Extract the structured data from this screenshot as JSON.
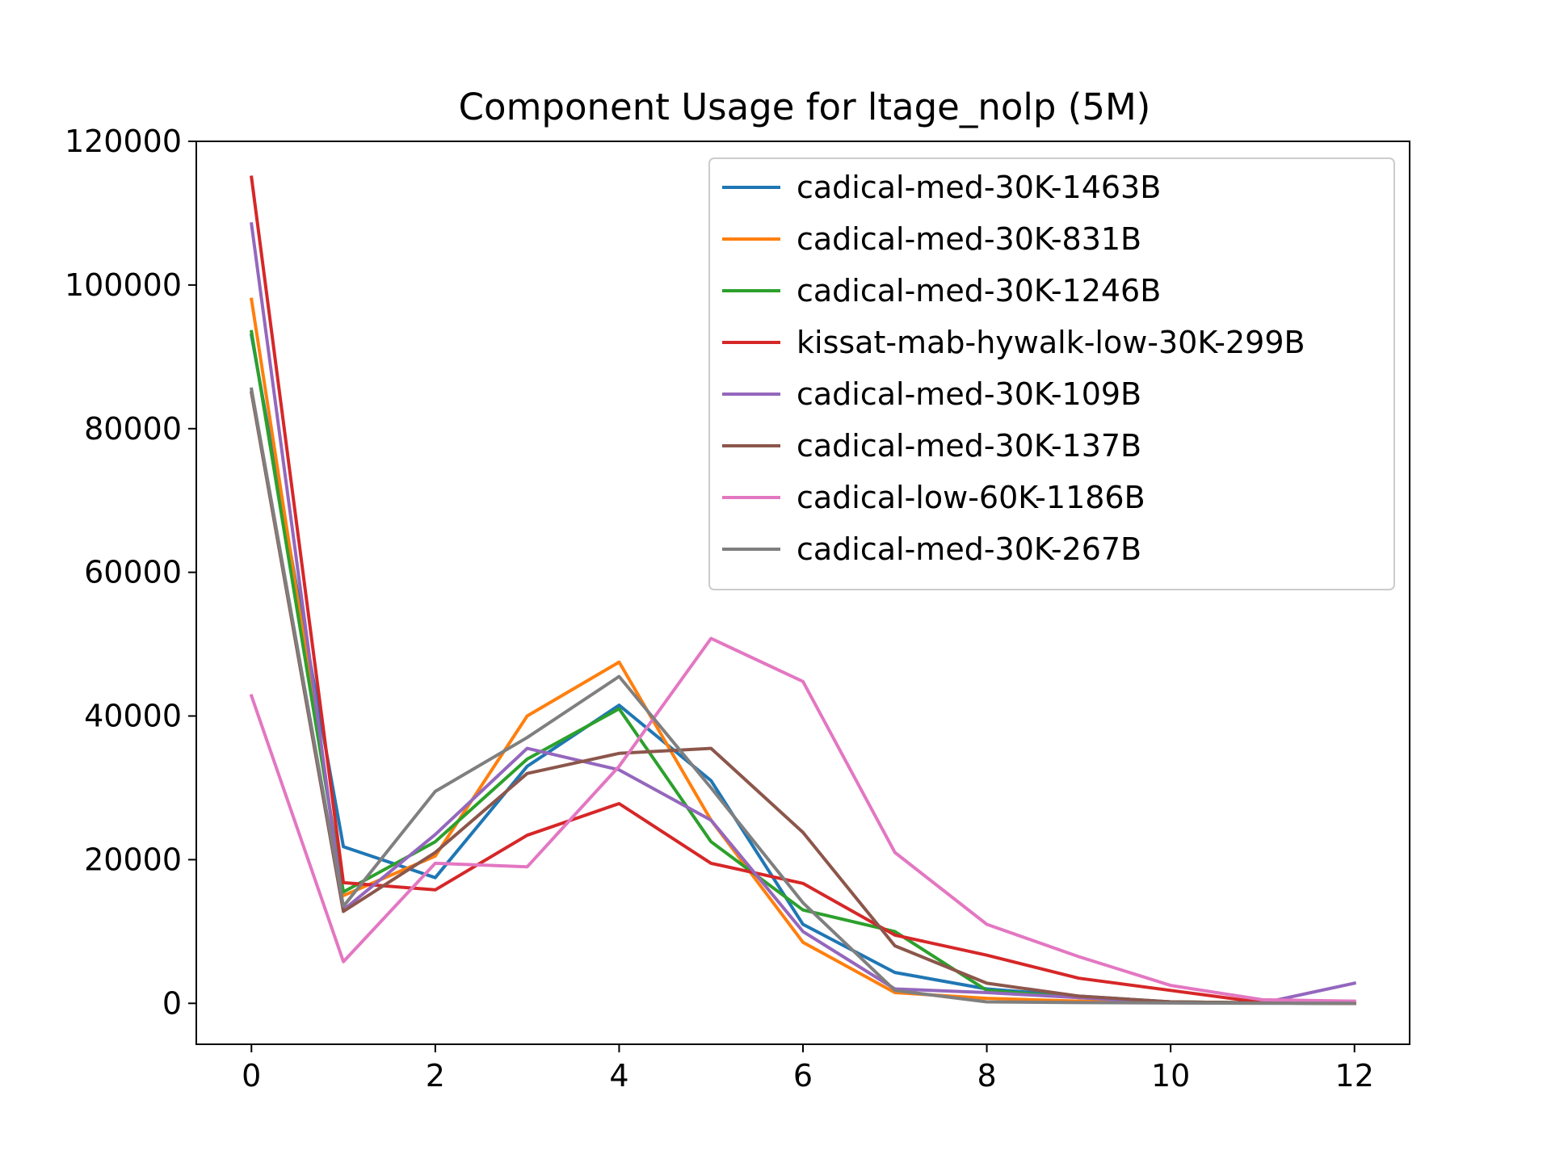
{
  "chart_data": {
    "type": "line",
    "title": "Component Usage for ltage_nolp (5M)",
    "xlabel": "",
    "ylabel": "",
    "xlim": [
      -0.6,
      12.6
    ],
    "ylim": [
      -5700,
      120000
    ],
    "xticks": [
      0,
      2,
      4,
      6,
      8,
      10,
      12
    ],
    "xtick_labels": [
      "0",
      "2",
      "4",
      "6",
      "8",
      "10",
      "12"
    ],
    "yticks": [
      0,
      20000,
      40000,
      60000,
      80000,
      100000,
      120000
    ],
    "ytick_labels": [
      "0",
      "20000",
      "40000",
      "60000",
      "80000",
      "100000",
      "120000"
    ],
    "grid": false,
    "legend_position": "top-right",
    "x": [
      0,
      1,
      2,
      3,
      4,
      5,
      6,
      7,
      8,
      9,
      10,
      11,
      12
    ],
    "series": [
      {
        "name": "cadical-med-30K-1463B",
        "color": "#1f77b4",
        "values": [
          93000,
          21800,
          17500,
          33000,
          41500,
          31000,
          11000,
          4300,
          2000,
          1000,
          200,
          50,
          0
        ]
      },
      {
        "name": "cadical-med-30K-831B",
        "color": "#ff7f0e",
        "values": [
          98000,
          15000,
          20500,
          40000,
          47500,
          25500,
          8500,
          1500,
          700,
          300,
          100,
          50,
          0
        ]
      },
      {
        "name": "cadical-med-30K-1246B",
        "color": "#2ca02c",
        "values": [
          93500,
          15500,
          22500,
          34000,
          41000,
          22500,
          13000,
          10000,
          1800,
          800,
          200,
          50,
          0
        ]
      },
      {
        "name": "kissat-mab-hywalk-low-30K-299B",
        "color": "#d62728",
        "values": [
          115000,
          16800,
          15800,
          23400,
          27800,
          19500,
          16700,
          9500,
          6700,
          3500,
          1800,
          100,
          0
        ]
      },
      {
        "name": "cadical-med-30K-109B",
        "color": "#9467bd",
        "values": [
          108500,
          13000,
          23500,
          35500,
          32500,
          25500,
          10000,
          2000,
          1500,
          800,
          100,
          50,
          2800
        ]
      },
      {
        "name": "cadical-med-30K-137B",
        "color": "#8c564b",
        "values": [
          85000,
          12800,
          21000,
          32000,
          34800,
          35500,
          23800,
          8000,
          2800,
          1000,
          200,
          50,
          0
        ]
      },
      {
        "name": "cadical-low-60K-1186B",
        "color": "#e377c2",
        "values": [
          42800,
          5800,
          19500,
          19000,
          33000,
          50800,
          44800,
          21000,
          11000,
          6500,
          2500,
          500,
          300
        ]
      },
      {
        "name": "cadical-med-30K-267B",
        "color": "#7f7f7f",
        "values": [
          85500,
          13500,
          29500,
          37000,
          45500,
          30000,
          14000,
          1800,
          200,
          100,
          50,
          0,
          0
        ]
      }
    ]
  }
}
